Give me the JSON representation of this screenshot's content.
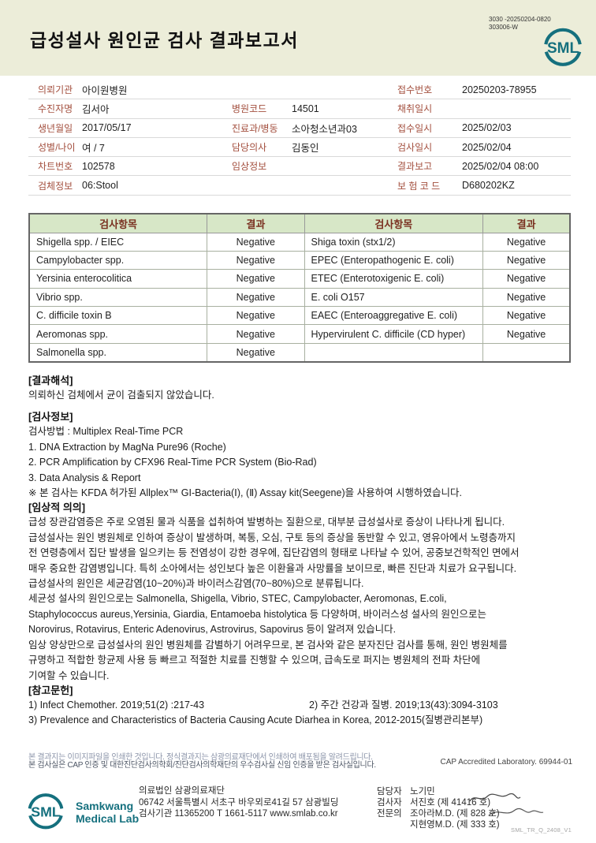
{
  "colors": {
    "accent_teal": "#15707e",
    "header_bg": "#ecedd9",
    "label_red": "#a34f3e",
    "table_header_bg": "#d7e7c7",
    "table_header_text": "#7a3020"
  },
  "header": {
    "title": "급성설사 원인균 검사 결과보고서",
    "doc_no_line1": "3030 -20250204-0820",
    "doc_no_line2": "303006-W",
    "logo_text": "SML"
  },
  "patient_info": {
    "rows": [
      {
        "c1_label": "의뢰기관",
        "c1_value": "아이원병원",
        "c2_label": "",
        "c2_value": "",
        "c3_label": "접수번호",
        "c3_value": "20250203-78955"
      },
      {
        "c1_label": "수진자명",
        "c1_value": "김서아",
        "c2_label": "병원코드",
        "c2_value": "14501",
        "c3_label": "채취일시",
        "c3_value": ""
      },
      {
        "c1_label": "생년월일",
        "c1_value": "2017/05/17",
        "c2_label": "진료과/병동",
        "c2_value": "소아청소년과03",
        "c3_label": "접수일시",
        "c3_value": "2025/02/03"
      },
      {
        "c1_label": "성별/나이",
        "c1_value": "여 / 7",
        "c2_label": "담당의사",
        "c2_value": "김동인",
        "c3_label": "검사일시",
        "c3_value": "2025/02/04"
      },
      {
        "c1_label": "차트번호",
        "c1_value": "102578",
        "c2_label": "임상정보",
        "c2_value": "",
        "c3_label": "결과보고",
        "c3_value": "2025/02/04 08:00"
      },
      {
        "c1_label": "검체정보",
        "c1_value": "06:Stool",
        "c2_label": "",
        "c2_value": "",
        "c3_label": "보 험 코 드",
        "c3_value": "D680202KZ"
      }
    ]
  },
  "results_table": {
    "headers": [
      "검사항목",
      "결과",
      "검사항목",
      "결과"
    ],
    "rows": [
      [
        "Shigella spp. / EIEC",
        "Negative",
        "Shiga toxin (stx1/2)",
        "Negative"
      ],
      [
        "Campylobacter spp.",
        "Negative",
        "EPEC (Enteropathogenic E. coli)",
        "Negative"
      ],
      [
        "Yersinia enterocolitica",
        "Negative",
        "ETEC (Enterotoxigenic E. coli)",
        "Negative"
      ],
      [
        "Vibrio spp.",
        "Negative",
        "E. coli O157",
        "Negative"
      ],
      [
        "C. difficile toxin B",
        "Negative",
        "EAEC (Enteroaggregative E. coli)",
        "Negative"
      ],
      [
        "Aeromonas spp.",
        "Negative",
        "Hypervirulent C. difficile (CD hyper)",
        "Negative"
      ],
      [
        "Salmonella spp.",
        "Negative",
        "",
        ""
      ]
    ]
  },
  "sections": {
    "interpretation_heading": "[결과해석]",
    "interpretation_text": "의뢰하신 검체에서 균이 검출되지 않았습니다.",
    "test_info_heading": "[검사정보]",
    "test_info_lines": [
      "검사방법 : Multiplex Real-Time PCR",
      "1. DNA Extraction by MagNa Pure96 (Roche)",
      "2. PCR Amplification by CFX96 Real-Time PCR System (Bio-Rad)",
      "3. Data Analysis & Report",
      "※ 본 검사는 KFDA 허가된 Allplex™ GI-Bacteria(Ⅰ), (Ⅱ) Assay kit(Seegene)을 사용하여 시행하였습니다."
    ],
    "clinical_heading": "[임상적 의의]",
    "clinical_lines": [
      "급성 장관감염증은 주로 오염된 물과 식품을 섭취하여 발병하는 질환으로, 대부분 급성설사로 증상이 나타나게 됩니다.",
      "급성설사는 원인 병원체로 인하여 증상이 발생하며, 복통, 오심, 구토 등의 증상을 동반할 수 있고, 영유아에서 노령층까지",
      "전 연령층에서 집단 발생을 일으키는 등 전염성이 강한 경우에, 집단감염의 형태로 나타날 수 있어, 공중보건학적인 면에서",
      "매우 중요한 감염병입니다. 특히 소아에서는 성인보다 높은 이환율과 사망률을 보이므로, 빠른 진단과 치료가 요구됩니다.",
      "급성설사의 원인은 세균감염(10~20%)과 바이러스감염(70~80%)으로 분류됩니다.",
      "세균성 설사의 원인으로는 Salmonella, Shigella, Vibrio, STEC, Campylobacter, Aeromonas, E.coli,",
      "Staphylococcus aureus,Yersinia, Giardia, Entamoeba histolytica 등 다양하며, 바이러스성 설사의 원인으로는",
      "Norovirus, Rotavirus, Enteric Adenovirus, Astrovirus, Sapovirus 등이 알려져 있습니다.",
      "임상 양상만으로 급성설사의 원인 병원체를 감별하기 어려우므로, 본 검사와 같은 분자진단 검사를 통해, 원인 병원체를",
      "규명하고 적합한 항균제 사용 등 빠르고 적절한 치료를 진행할 수 있으며, 급속도로 퍼지는 병원체의 전파 차단에",
      "기여할 수 있습니다."
    ],
    "references_heading": "[참고문헌]",
    "reference1": "1) Infect Chemother. 2019;51(2) :217-43",
    "reference2": "2) 주간 건강과 질병. 2019;13(43):3094-3103",
    "reference3": "3) Prevalence and Characteristics of Bacteria Causing Acute Diarhea in Korea, 2012-2015(질병관리본부)"
  },
  "footer": {
    "disclaimer_line1": "본 결과지는 이미지파일을 인쇄한 것입니다. 정식결과지는 삼광의료재단에서 인쇄하여 배포됨을 알려드립니다.",
    "disclaimer_line2": "본 검사실은 CAP 인증 및 대한진단검사의학회/진단검사의학재단의 우수검사실 신임 인증을 받은 검사실입니다.",
    "cap_text": "CAP Accredited Laboratory. 69944-01",
    "logo_text": "SML",
    "brand_line1": "Samkwang",
    "brand_line2": "Medical Lab",
    "org_name": "의료법인 삼광의료재단",
    "address": "06742 서울특별시 서초구 바우뫼로41길 57 삼광빌딩",
    "agency": "검사기관 11365200 T 1661-5117 www.smlab.co.kr",
    "staff_manager_label": "담당자",
    "staff_manager": "노기민",
    "staff_examiner_label": "검사자",
    "staff_examiner": "서진호 (제 41416 호)",
    "staff_specialist_label": "전문의",
    "staff_specialist1": "조아라M.D. (제 828 호)",
    "staff_specialist2": "지현영M.D. (제 333 호)",
    "form_code": "SML_TR_Q_2408_V1"
  }
}
